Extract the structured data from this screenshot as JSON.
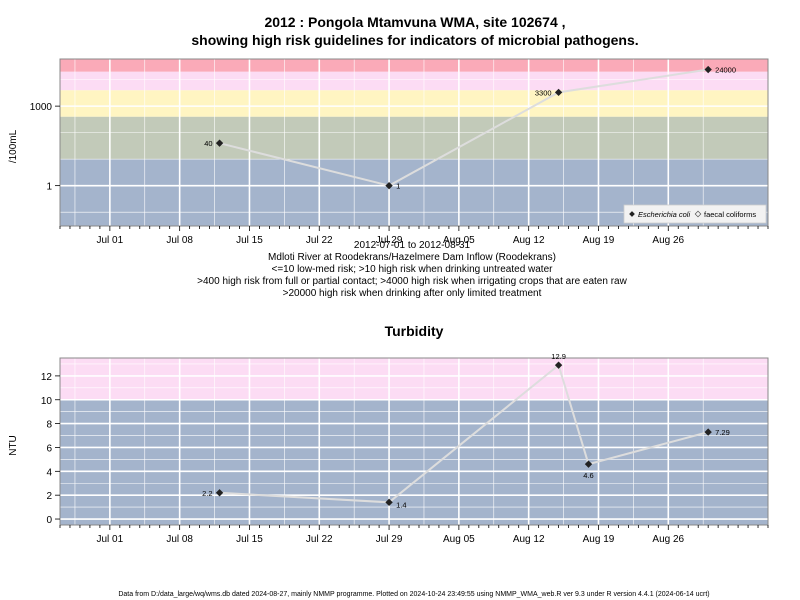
{
  "title_line1": "2012 : Pongola Mtamvuna WMA, site 102674 ,",
  "title_line2": "showing high risk guidelines for indicators of microbial pathogens.",
  "subtitle_lines": [
    "2012-07-01 to 2012-08-31",
    "Mdloti River at Roodekrans/Hazelmere Dam Inflow (Roodekrans)",
    "<=10 low-med risk; >10 high risk when drinking untreated water",
    ">400 high risk from full or partial contact; >4000 high risk when irrigating crops that are eaten raw",
    ">20000 high risk when drinking after only limited treatment"
  ],
  "footer": "Data from D:/data_large/wq/wms.db dated 2024-08-27, mainly NMMP programme. Plotted on 2024-10-24 23:49:55 using NMMP_WMA_web.R ver 9.3 under R version 4.4.1 (2024-06-14 ucrt)",
  "colors": {
    "band_low": "#a4b4cc",
    "band_med": "#c2cab9",
    "band_contact": "#fff5c2",
    "band_irrig": "#fcdcf4",
    "band_drink": "#faaab8",
    "line": "#dddddd",
    "point": "#222222",
    "grid": "#ffffff",
    "frame": "#888888"
  },
  "chart_data": [
    {
      "type": "line",
      "ylabel": "/100mL",
      "yscale": "log10",
      "x_axis": {
        "range": [
          "2012-06-26",
          "2012-09-05"
        ],
        "tick_labels": [
          "Jul 01",
          "Jul 08",
          "Jul 15",
          "Jul 22",
          "Jul 29",
          "Aug 05",
          "Aug 12",
          "Aug 19",
          "Aug 26"
        ],
        "tick_dates": [
          "2012-07-01",
          "2012-07-08",
          "2012-07-15",
          "2012-07-22",
          "2012-07-29",
          "2012-08-05",
          "2012-08-12",
          "2012-08-19",
          "2012-08-26"
        ]
      },
      "y_axis": {
        "range": [
          0.03,
          60000
        ],
        "tick_labels": [
          "1",
          "1000"
        ],
        "tick_values": [
          1,
          1000
        ]
      },
      "bands": [
        {
          "from": 0.03,
          "to": 10,
          "color": "#a4b4cc"
        },
        {
          "from": 10,
          "to": 400,
          "color": "#c2cab9"
        },
        {
          "from": 400,
          "to": 4000,
          "color": "#fff5c2"
        },
        {
          "from": 4000,
          "to": 20000,
          "color": "#fcdcf4"
        },
        {
          "from": 20000,
          "to": 60000,
          "color": "#faaab8"
        }
      ],
      "series": [
        {
          "name": "Escherichia coli",
          "points": [
            {
              "x": "2012-07-12",
              "y": 40,
              "label": "40"
            },
            {
              "x": "2012-07-29",
              "y": 1,
              "label": "1"
            },
            {
              "x": "2012-08-15",
              "y": 3300,
              "label": "3300"
            },
            {
              "x": "2012-08-30",
              "y": 24000,
              "label": "24000"
            }
          ]
        }
      ],
      "legend": {
        "placement": "bottom-right",
        "entries": [
          "Escherichia coli",
          "faecal coliforms"
        ]
      },
      "grid": true
    },
    {
      "type": "line",
      "title": "Turbidity",
      "ylabel": "NTU",
      "x_axis": {
        "range": [
          "2012-06-26",
          "2012-09-05"
        ],
        "tick_labels": [
          "Jul 01",
          "Jul 08",
          "Jul 15",
          "Jul 22",
          "Jul 29",
          "Aug 05",
          "Aug 12",
          "Aug 19",
          "Aug 26"
        ],
        "tick_dates": [
          "2012-07-01",
          "2012-07-08",
          "2012-07-15",
          "2012-07-22",
          "2012-07-29",
          "2012-08-05",
          "2012-08-12",
          "2012-08-19",
          "2012-08-26"
        ]
      },
      "y_axis": {
        "range": [
          -0.5,
          13.5
        ],
        "tick_labels": [
          "0",
          "2",
          "4",
          "6",
          "8",
          "10",
          "12"
        ],
        "tick_values": [
          0,
          2,
          4,
          6,
          8,
          10,
          12
        ]
      },
      "bands": [
        {
          "from": -0.5,
          "to": 10,
          "color": "#a4b4cc"
        },
        {
          "from": 10,
          "to": 13.5,
          "color": "#fcdcf4"
        }
      ],
      "series": [
        {
          "points": [
            {
              "x": "2012-07-12",
              "y": 2.2,
              "label": "2.2"
            },
            {
              "x": "2012-07-29",
              "y": 1.4,
              "label": "1.4"
            },
            {
              "x": "2012-08-15",
              "y": 12.9,
              "label": "12.9"
            },
            {
              "x": "2012-08-18",
              "y": 4.6,
              "label": "4.6"
            },
            {
              "x": "2012-08-30",
              "y": 7.29,
              "label": "7.29"
            }
          ]
        }
      ],
      "grid": true
    }
  ]
}
